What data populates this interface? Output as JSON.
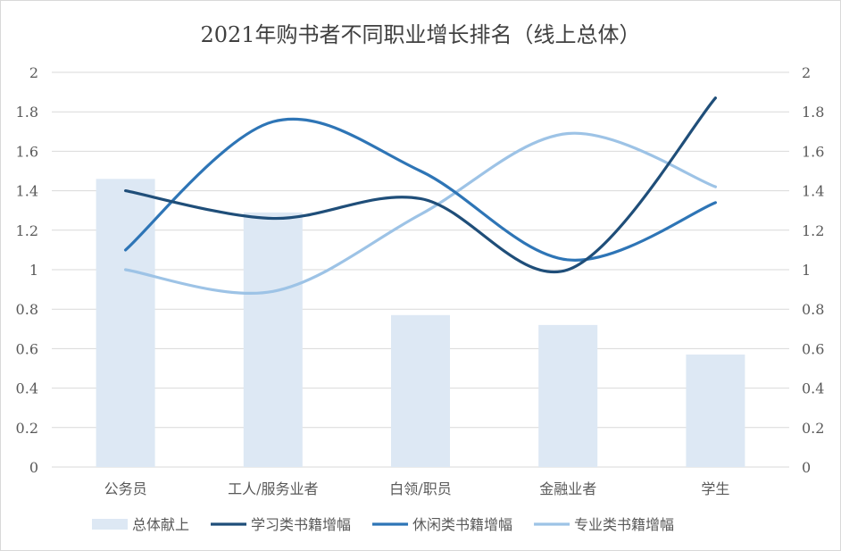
{
  "chart_data": {
    "type": "bar+line",
    "title": "2021年购书者不同职业增长排名（线上总体）",
    "categories": [
      "公务员",
      "工人/服务业者",
      "白领/职员",
      "金融业者",
      "学生"
    ],
    "ylim": [
      0,
      2
    ],
    "y_ticks": [
      "0",
      "0.2",
      "0.4",
      "0.6",
      "0.8",
      "1",
      "1.2",
      "1.4",
      "1.6",
      "1.8",
      "2"
    ],
    "y2_ticks": [
      "0",
      "0.2",
      "0.4",
      "0.6",
      "0.8",
      "1",
      "1.2",
      "1.4",
      "1.6",
      "1.8",
      "2"
    ],
    "grid": true,
    "legend_position": "bottom",
    "series": [
      {
        "name": "总体献上",
        "kind": "bar",
        "color": "#dde8f4",
        "values": [
          1.46,
          1.29,
          0.77,
          0.72,
          0.57
        ]
      },
      {
        "name": "学习类书籍增幅",
        "kind": "line",
        "color": "#1f4e79",
        "values": [
          1.4,
          1.26,
          1.36,
          1.0,
          1.87
        ]
      },
      {
        "name": "休闲类书籍增幅",
        "kind": "line",
        "color": "#2e75b6",
        "values": [
          1.1,
          1.75,
          1.5,
          1.05,
          1.34
        ]
      },
      {
        "name": "专业类书籍增幅",
        "kind": "line",
        "color": "#9dc3e6",
        "values": [
          1.0,
          0.89,
          1.28,
          1.69,
          1.42
        ]
      }
    ]
  }
}
